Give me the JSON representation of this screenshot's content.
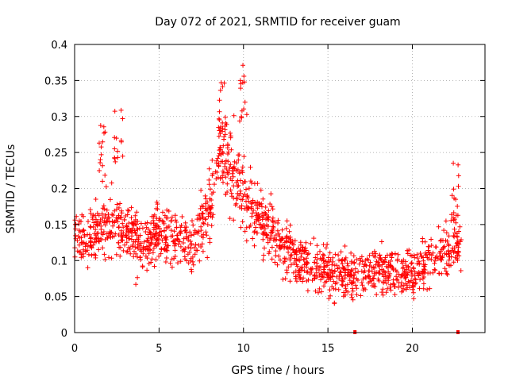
{
  "chart_data": {
    "type": "scatter",
    "title": "Day 072 of 2021, SRMTID for receiver guam",
    "xlabel": "GPS time / hours",
    "ylabel": "SRMTID / TECUs",
    "xlim": [
      0,
      24.3
    ],
    "ylim": [
      0,
      0.4
    ],
    "xticks": [
      0,
      5,
      10,
      15,
      20
    ],
    "yticks": [
      0,
      0.05,
      0.1,
      0.15,
      0.2,
      0.25,
      0.3,
      0.35,
      0.4
    ],
    "ytick_labels": [
      "0",
      "0.05",
      "0.1",
      "0.15",
      "0.2",
      "0.25",
      "0.3",
      "0.35",
      "0.4"
    ],
    "grid": true,
    "marker": "+",
    "color": "#ff0000",
    "trend": {
      "x": [
        0,
        1,
        2,
        3,
        4,
        5,
        6,
        7,
        8,
        8.5,
        9,
        10,
        11,
        12,
        13,
        14,
        15,
        16,
        17,
        18,
        19,
        20,
        21,
        22,
        22.8
      ],
      "y": [
        0.14,
        0.13,
        0.15,
        0.14,
        0.12,
        0.14,
        0.13,
        0.12,
        0.17,
        0.25,
        0.24,
        0.2,
        0.15,
        0.13,
        0.11,
        0.09,
        0.085,
        0.08,
        0.085,
        0.09,
        0.08,
        0.085,
        0.1,
        0.11,
        0.13
      ]
    },
    "peaks": [
      {
        "x": 8.8,
        "y": 0.36
      },
      {
        "x": 10.0,
        "y": 0.375
      },
      {
        "x": 2.6,
        "y": 0.31
      },
      {
        "x": 1.7,
        "y": 0.29
      },
      {
        "x": 22.5,
        "y": 0.245
      }
    ],
    "zero_points": [
      {
        "x": 16.6,
        "y": 0
      },
      {
        "x": 22.7,
        "y": 0
      }
    ]
  }
}
